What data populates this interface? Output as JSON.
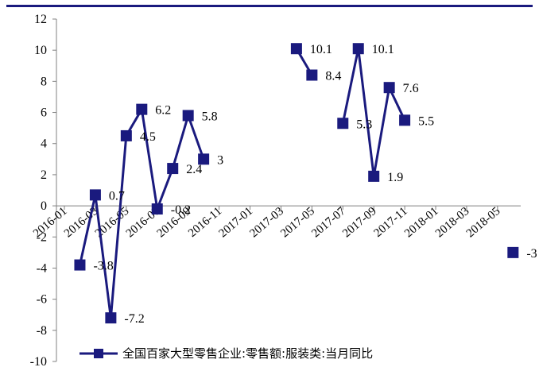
{
  "chart_data": {
    "type": "line",
    "series": [
      {
        "name": "全国百家大型零售企业:零售额:服装类:当月同比",
        "color": "#1a1a7e",
        "points": [
          {
            "x": "2016-02",
            "y": -3.8,
            "label": "-3.8"
          },
          {
            "x": "2016-03",
            "y": 0.7,
            "label": "0.7"
          },
          {
            "x": "2016-04",
            "y": -7.2,
            "label": "-7.2"
          },
          {
            "x": "2016-05",
            "y": 4.5,
            "label": "4.5"
          },
          {
            "x": "2016-06",
            "y": 6.2,
            "label": "6.2"
          },
          {
            "x": "2016-07",
            "y": -0.2,
            "label": "-0.2"
          },
          {
            "x": "2016-08",
            "y": 2.4,
            "label": "2.4"
          },
          {
            "x": "2016-09",
            "y": 5.8,
            "label": "5.8"
          },
          {
            "x": "2016-10",
            "y": 3,
            "label": "3"
          },
          {
            "x": "2017-04",
            "y": 10.1,
            "label": "10.1"
          },
          {
            "x": "2017-05",
            "y": 8.4,
            "label": "8.4"
          },
          {
            "x": "2017-07",
            "y": 5.3,
            "label": "5.3"
          },
          {
            "x": "2017-08",
            "y": 10.1,
            "label": "10.1"
          },
          {
            "x": "2017-09",
            "y": 1.9,
            "label": "1.9"
          },
          {
            "x": "2017-10",
            "y": 7.6,
            "label": "7.6"
          },
          {
            "x": "2017-11",
            "y": 5.5,
            "label": "5.5"
          },
          {
            "x": "2018-06",
            "y": -3,
            "label": "-3"
          }
        ]
      }
    ],
    "x_range": [
      "2016-01",
      "2018-06"
    ],
    "x_ticks": [
      "2016-01",
      "2016-03",
      "2016-05",
      "2016-07",
      "2016-09",
      "2016-11",
      "2017-01",
      "2017-03",
      "2017-05",
      "2017-07",
      "2017-09",
      "2017-11",
      "2018-01",
      "2018-03",
      "2018-05"
    ],
    "y_ticks": [
      -10,
      -8,
      -6,
      -4,
      -2,
      0,
      2,
      4,
      6,
      8,
      10,
      12
    ],
    "ylim": [
      -10,
      12
    ],
    "grid": false,
    "legend_position": "bottom",
    "top_rule_color": "#1a1a7e"
  }
}
